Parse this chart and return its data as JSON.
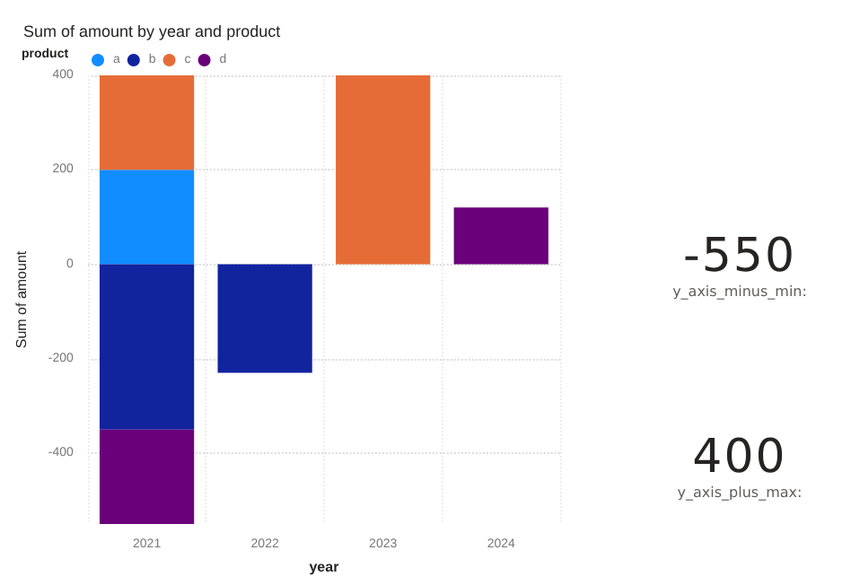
{
  "chart_data": [
    {
      "type": "bar",
      "title": "Sum of amount by year and product",
      "xlabel": "year",
      "ylabel": "Sum of amount",
      "legend_title": "product",
      "legend": "top left",
      "grid": true,
      "stacked": true,
      "categories": [
        "2021",
        "2022",
        "2023",
        "2024"
      ],
      "series": [
        {
          "name": "a",
          "color": "#118dff",
          "values": [
            200,
            null,
            null,
            null
          ]
        },
        {
          "name": "b",
          "color": "#12239e",
          "values": [
            -350,
            -230,
            null,
            null
          ]
        },
        {
          "name": "c",
          "color": "#e66c37",
          "values": [
            200,
            null,
            400,
            null
          ]
        },
        {
          "name": "d",
          "color": "#6b007b",
          "values": [
            -200,
            null,
            null,
            120
          ]
        }
      ],
      "ylim": [
        -550,
        400
      ],
      "yticks": [
        -400,
        -200,
        0,
        200,
        400
      ]
    },
    {
      "type": "other",
      "annotations": [
        "-550",
        "y_axis_minus_min:"
      ]
    },
    {
      "type": "other",
      "annotations": [
        "400",
        "y_axis_plus_max:"
      ]
    }
  ]
}
